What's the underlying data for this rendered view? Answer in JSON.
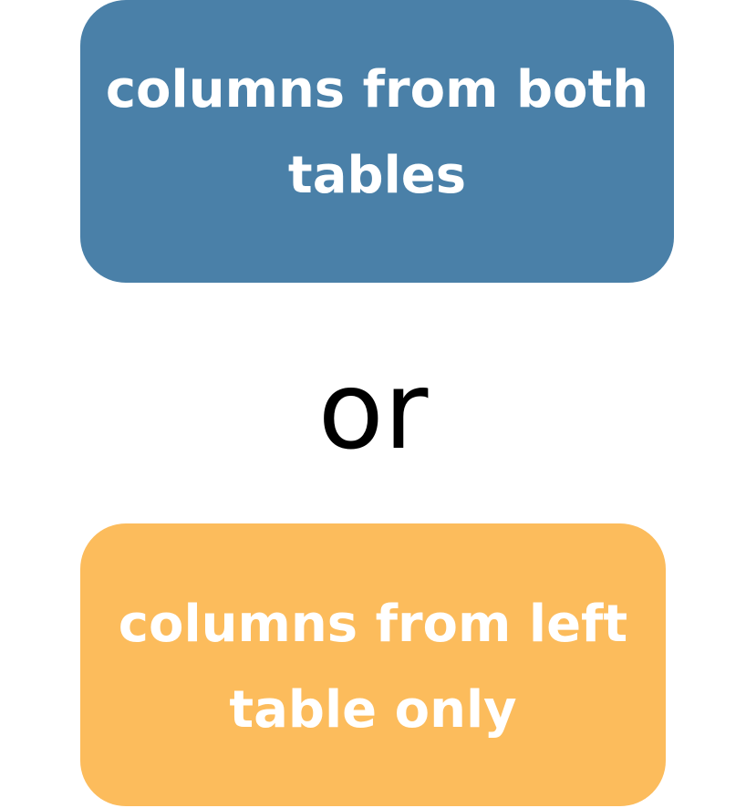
{
  "top_box": {
    "text": "columns from both\ntables",
    "color": "#4a80a8"
  },
  "separator": {
    "text": "or"
  },
  "bottom_box": {
    "text": "columns from left\ntable only",
    "color": "#fcbc5c"
  }
}
